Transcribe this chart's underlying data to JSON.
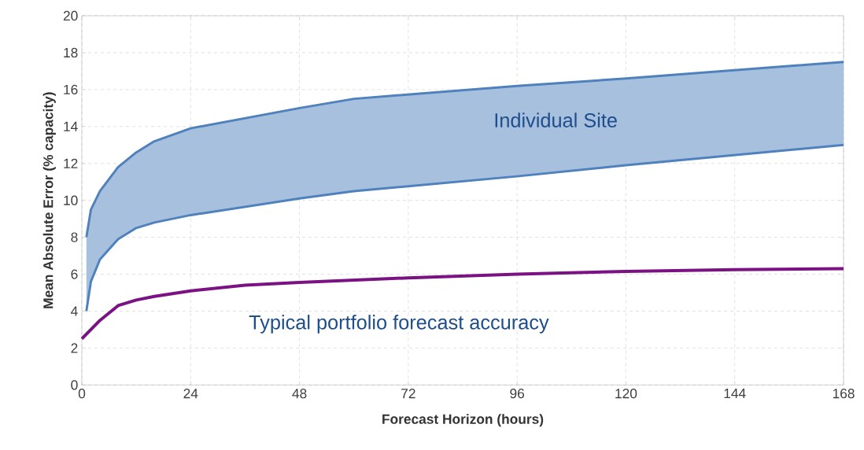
{
  "chart_data": {
    "type": "line",
    "xlabel": "Forecast Horizon (hours)",
    "ylabel": "Mean Absolute Error (% capacity)",
    "series": [
      {
        "name": "Individual Site",
        "color": "#4f81bd",
        "x": [
          1,
          2,
          4,
          8,
          12,
          16,
          24,
          48,
          60,
          96,
          120,
          168
        ],
        "values": [
          8.0,
          9.5,
          10.5,
          11.8,
          12.6,
          13.2,
          13.9,
          15.0,
          15.5,
          16.2,
          16.6,
          17.5
        ],
        "upper": [
          8.0,
          9.5,
          10.5,
          11.8,
          12.6,
          13.2,
          13.9,
          15.0,
          15.5,
          16.2,
          16.6,
          17.5
        ],
        "lower": [
          4.0,
          5.6,
          6.8,
          7.9,
          8.5,
          8.8,
          9.2,
          10.1,
          10.5,
          11.3,
          11.9,
          13.0
        ]
      },
      {
        "color": "#4f81bd",
        "x": [
          1,
          2,
          4,
          8,
          12,
          16,
          24,
          48,
          60,
          96,
          120,
          168
        ],
        "values": [
          4.0,
          5.6,
          6.8,
          7.9,
          8.5,
          8.8,
          9.2,
          10.1,
          10.5,
          11.3,
          11.9,
          13.0
        ]
      },
      {
        "name": "Typical portfolio forecast accuracy",
        "color": "#7b1283",
        "x": [
          0,
          2,
          4,
          8,
          12,
          16,
          24,
          36,
          48,
          72,
          96,
          120,
          144,
          168
        ],
        "values": [
          2.5,
          3.0,
          3.5,
          4.3,
          4.6,
          4.8,
          5.1,
          5.4,
          5.55,
          5.8,
          6.0,
          6.15,
          6.25,
          6.3
        ]
      }
    ],
    "xlim": [
      0,
      168
    ],
    "ylim": [
      0,
      20
    ],
    "xticks": [
      0,
      24,
      48,
      72,
      96,
      120,
      144,
      168
    ],
    "yticks": [
      0,
      2,
      4,
      6,
      8,
      10,
      12,
      14,
      16,
      18,
      20
    ],
    "grid": true,
    "legend": false,
    "marker": "none",
    "line_style": "solid"
  }
}
